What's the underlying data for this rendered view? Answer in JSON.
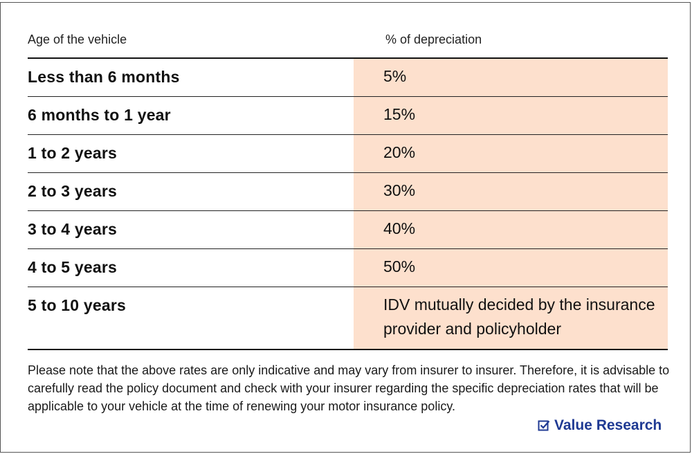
{
  "table": {
    "headers": [
      "Age of the vehicle",
      "% of depreciation"
    ],
    "rows": [
      {
        "age": "Less than 6 months",
        "depreciation": "5%"
      },
      {
        "age": "6 months to 1 year",
        "depreciation": "15%"
      },
      {
        "age": "1 to 2 years",
        "depreciation": "20%"
      },
      {
        "age": "2 to 3 years",
        "depreciation": "30%"
      },
      {
        "age": "3 to 4 years",
        "depreciation": "40%"
      },
      {
        "age": "4 to 5 years",
        "depreciation": "50%"
      },
      {
        "age": "5 to 10 years",
        "depreciation": "IDV mutually decided by the insurance provider and policyholder"
      }
    ]
  },
  "note": "Please note that the above rates are only indicative and may vary from insurer to insurer. Therefore, it is advisable to carefully read the policy document and check with your insurer regarding the specific depreciation rates that will be applicable to your vehicle at the time of renewing your motor insurance policy.",
  "brand": {
    "name": "Value Research",
    "icon": "checkbox-icon",
    "color": "#1f3a93"
  },
  "colors": {
    "highlight_column": "#fde0cd"
  }
}
